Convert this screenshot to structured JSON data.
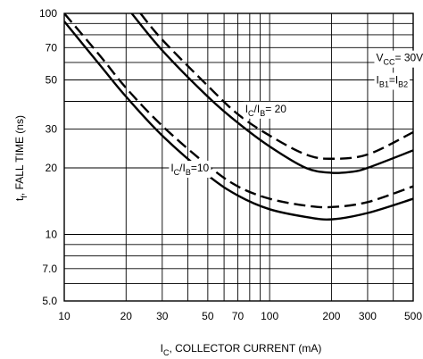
{
  "chart_data": {
    "type": "line",
    "xlabel": {
      "main": "I",
      "sub": "C",
      "rest": ", COLLECTOR CURRENT (mA)"
    },
    "ylabel": {
      "pre": "t",
      "sub": "f",
      "rest": ", FALL TIME (ns)"
    },
    "x_scale": "log",
    "y_scale": "log",
    "xlim": [
      10,
      500
    ],
    "ylim": [
      5,
      100
    ],
    "x_ticks": [
      {
        "value": 10,
        "label": "10"
      },
      {
        "value": 20,
        "label": "20"
      },
      {
        "value": 30,
        "label": "30"
      },
      {
        "value": 50,
        "label": "50"
      },
      {
        "value": 70,
        "label": "70"
      },
      {
        "value": 100,
        "label": "100"
      },
      {
        "value": 200,
        "label": "200"
      },
      {
        "value": 300,
        "label": "300"
      },
      {
        "value": 500,
        "label": "500"
      }
    ],
    "y_ticks": [
      {
        "value": 5,
        "label": "5.0"
      },
      {
        "value": 7,
        "label": "7.0"
      },
      {
        "value": 10,
        "label": "10"
      },
      {
        "value": 20,
        "label": "20"
      },
      {
        "value": 30,
        "label": "30"
      },
      {
        "value": 50,
        "label": "50"
      },
      {
        "value": 70,
        "label": "70"
      },
      {
        "value": 100,
        "label": "100"
      }
    ],
    "x_grid": [
      10,
      20,
      30,
      40,
      50,
      60,
      70,
      80,
      90,
      100,
      200,
      300,
      400,
      500
    ],
    "y_grid": [
      5,
      6,
      7,
      8,
      9,
      10,
      20,
      30,
      40,
      50,
      60,
      70,
      80,
      90,
      100
    ],
    "grid": true,
    "series": [
      {
        "style": "solid",
        "color": "#000000",
        "x": [
          10,
          15,
          20,
          30,
          50,
          70,
          100,
          150,
          200,
          300,
          500
        ],
        "y": [
          92,
          58,
          42,
          28,
          18.5,
          15,
          13,
          12,
          11.7,
          12.5,
          14.5
        ]
      },
      {
        "style": "dashed",
        "color": "#000000",
        "x": [
          10,
          15,
          20,
          30,
          50,
          70,
          100,
          150,
          200,
          300,
          500
        ],
        "y": [
          100,
          64,
          46,
          31,
          20.5,
          16.5,
          14.5,
          13.5,
          13.3,
          14,
          16.5
        ]
      },
      {
        "style": "solid",
        "color": "#000000",
        "x": [
          21.3,
          30,
          50,
          70,
          100,
          150,
          200,
          250,
          300,
          500
        ],
        "y": [
          100,
          68,
          42,
          32,
          25,
          20,
          19,
          19.2,
          20,
          24
        ]
      },
      {
        "style": "dashed",
        "color": "#000000",
        "x": [
          23.5,
          30,
          50,
          70,
          100,
          150,
          200,
          300,
          500
        ],
        "y": [
          100,
          76,
          47,
          35,
          28,
          23,
          22,
          23,
          29
        ]
      }
    ],
    "annotations": [
      {
        "id": "vcc",
        "main": "V",
        "sub": "CC",
        "rest": "= 30V",
        "at": [
          330,
          63
        ]
      },
      {
        "id": "ib",
        "main": "I",
        "sub": "B1",
        "mid": "=I",
        "sub2": "B2",
        "at": [
          330,
          50
        ]
      },
      {
        "id": "ratio20",
        "main": "I",
        "sub": "C",
        "mid": "/I",
        "sub2": "B",
        "rest": "= 20",
        "at": [
          76,
          37
        ]
      },
      {
        "id": "ratio10",
        "main": "I",
        "sub": "C",
        "mid": "/I",
        "sub2": "B",
        "rest": "=10",
        "at": [
          33,
          20
        ]
      }
    ]
  }
}
